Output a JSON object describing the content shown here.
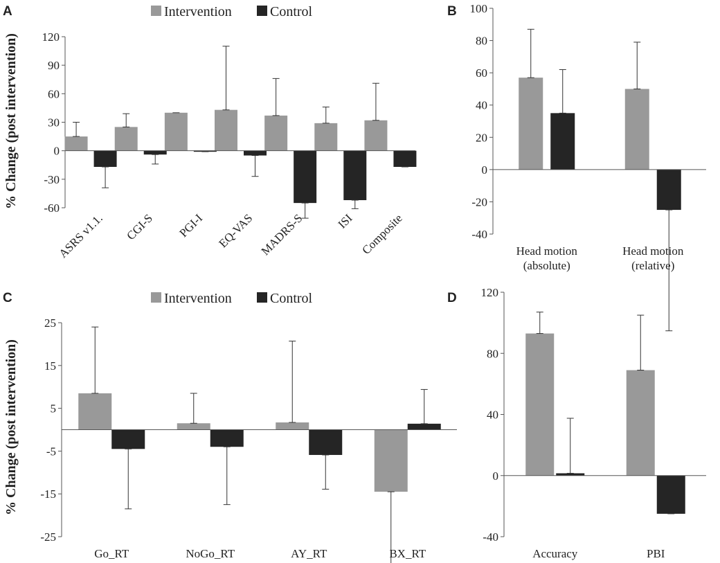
{
  "legend": {
    "intervention": "Intervention",
    "control": "Control"
  },
  "colors": {
    "intervention": "#999999",
    "control": "#252525",
    "axis": "#555555",
    "error": "#333333"
  },
  "chart_data": [
    {
      "panel": "A",
      "type": "bar",
      "ylabel": "% Change (post intervention)",
      "ylim": [
        -60,
        120
      ],
      "yticks": [
        120,
        90,
        60,
        30,
        0,
        -30,
        -60
      ],
      "categories": [
        "ASRS v1.1.",
        "CGI-S",
        "PGI-I",
        "EQ-VAS",
        "MADRS-S",
        "ISI",
        "Composite"
      ],
      "series": [
        {
          "name": "Intervention",
          "values": [
            15,
            25,
            40,
            43,
            37,
            29,
            32
          ],
          "errors": [
            15,
            14,
            0,
            67,
            39,
            17,
            39
          ]
        },
        {
          "name": "Control",
          "values": [
            -17,
            -4,
            -1,
            -5,
            -55,
            -52,
            -17
          ],
          "errors": [
            22,
            10,
            0,
            22,
            16,
            9,
            0
          ]
        }
      ]
    },
    {
      "panel": "B",
      "type": "bar",
      "ylabel": "",
      "ylim": [
        -40,
        100
      ],
      "yticks": [
        100,
        80,
        60,
        40,
        20,
        0,
        -20,
        -40
      ],
      "categories": [
        "Head motion\n(absolute)",
        "Head motion\n(relative)"
      ],
      "series": [
        {
          "name": "Intervention",
          "values": [
            57,
            50
          ],
          "errors": [
            30,
            29
          ]
        },
        {
          "name": "Control",
          "values": [
            35,
            -25
          ],
          "errors": [
            27,
            75
          ]
        }
      ]
    },
    {
      "panel": "C",
      "type": "bar",
      "ylabel": "% Change (post intervention)",
      "ylim": [
        -25,
        25
      ],
      "yticks": [
        25,
        15,
        5,
        -5,
        -15,
        -25
      ],
      "categories": [
        "Go_RT",
        "NoGo_RT",
        "AY_RT",
        "BX_RT"
      ],
      "series": [
        {
          "name": "Intervention",
          "values": [
            8.5,
            1.5,
            1.7,
            -14.5
          ],
          "errors": [
            15.5,
            7,
            19,
            17
          ]
        },
        {
          "name": "Control",
          "values": [
            -4.5,
            -4,
            -5.9,
            1.4
          ],
          "errors": [
            14,
            13.5,
            8,
            8
          ]
        }
      ]
    },
    {
      "panel": "D",
      "type": "bar",
      "ylabel": "",
      "ylim": [
        -40,
        120
      ],
      "yticks": [
        120,
        80,
        40,
        0,
        -40
      ],
      "categories": [
        "Accuracy",
        "PBI"
      ],
      "series": [
        {
          "name": "Intervention",
          "values": [
            93,
            69
          ],
          "errors": [
            14,
            36
          ]
        },
        {
          "name": "Control",
          "values": [
            1.5,
            -25
          ],
          "errors": [
            36,
            0
          ]
        }
      ]
    }
  ]
}
